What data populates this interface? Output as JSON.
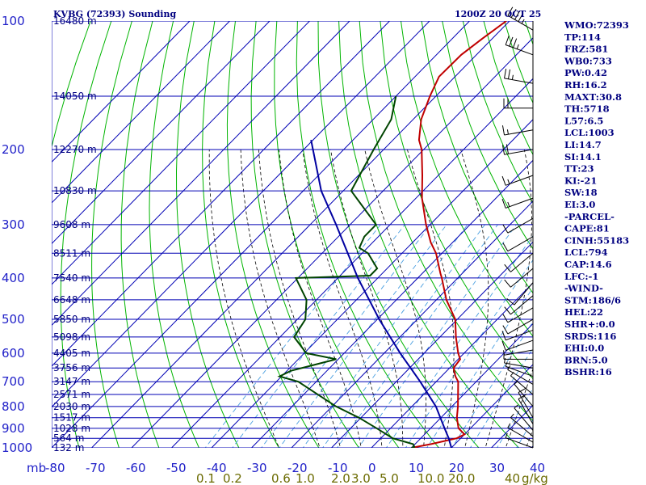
{
  "header": {
    "station_title": "KVBG (72393) Sounding",
    "datetime": "1200Z 20 OCT 25"
  },
  "chart_data": {
    "type": "skew-t",
    "pressure_axis": {
      "unit_label": "mb",
      "levels": [
        100,
        200,
        300,
        400,
        500,
        600,
        700,
        800,
        900,
        1000
      ],
      "log_scale": true
    },
    "temperature_axis": {
      "ticks": [
        -80,
        -70,
        -60,
        -50,
        -40,
        -30,
        -20,
        -10,
        0,
        10,
        20,
        30,
        40
      ],
      "skewed": true
    },
    "mixing_ratio_labels": [
      "0.1",
      "0.2",
      "0.6",
      "1.0",
      "2.0",
      "3.0",
      "5.0",
      "10.0",
      "20.0",
      "40",
      "g/kg"
    ],
    "height_labels": [
      {
        "p": 100,
        "label": "16480 m"
      },
      {
        "p": 150,
        "label": "14050 m"
      },
      {
        "p": 200,
        "label": "12270 m"
      },
      {
        "p": 250,
        "label": "10830 m"
      },
      {
        "p": 300,
        "label": "9608 m"
      },
      {
        "p": 350,
        "label": "8511 m"
      },
      {
        "p": 400,
        "label": "7540 m"
      },
      {
        "p": 450,
        "label": "6648 m"
      },
      {
        "p": 500,
        "label": "5850 m"
      },
      {
        "p": 550,
        "label": "5098 m"
      },
      {
        "p": 600,
        "label": "4405 m"
      },
      {
        "p": 650,
        "label": "3756 m"
      },
      {
        "p": 700,
        "label": "3147 m"
      },
      {
        "p": 750,
        "label": "2571 m"
      },
      {
        "p": 800,
        "label": "2030 m"
      },
      {
        "p": 850,
        "label": "1517 m"
      },
      {
        "p": 900,
        "label": "1028 m"
      },
      {
        "p": 950,
        "label": "564 m"
      },
      {
        "p": 1000,
        "label": "132 m"
      }
    ],
    "series": [
      {
        "name": "temperature",
        "color": "#c00000",
        "points": [
          [
            100,
            -70.8
          ],
          [
            110,
            -72.5
          ],
          [
            120,
            -73.8
          ],
          [
            135,
            -74.0
          ],
          [
            150,
            -71.5
          ],
          [
            170,
            -68.0
          ],
          [
            190,
            -63.5
          ],
          [
            200,
            -60.5
          ],
          [
            230,
            -54.0
          ],
          [
            260,
            -48.5
          ],
          [
            300,
            -41.0
          ],
          [
            330,
            -35.5
          ],
          [
            350,
            -31.5
          ],
          [
            390,
            -25.5
          ],
          [
            400,
            -24.0
          ],
          [
            450,
            -17.5
          ],
          [
            500,
            -10.5
          ],
          [
            550,
            -6.0
          ],
          [
            600,
            -1.5
          ],
          [
            620,
            0.5
          ],
          [
            650,
            1.0
          ],
          [
            680,
            3.5
          ],
          [
            700,
            5.5
          ],
          [
            800,
            11.5
          ],
          [
            850,
            14.0
          ],
          [
            900,
            17.0
          ],
          [
            930,
            20.0
          ],
          [
            950,
            19.0
          ],
          [
            980,
            14.0
          ],
          [
            1000,
            10.0
          ]
        ]
      },
      {
        "name": "dewpoint",
        "color": "#004400",
        "points": [
          [
            150,
            -80.0
          ],
          [
            170,
            -75.5
          ],
          [
            200,
            -72.5
          ],
          [
            250,
            -68.0
          ],
          [
            300,
            -53.5
          ],
          [
            320,
            -53.5
          ],
          [
            340,
            -52.0
          ],
          [
            350,
            -48.5
          ],
          [
            380,
            -42.5
          ],
          [
            395,
            -42.5
          ],
          [
            400,
            -60.5
          ],
          [
            450,
            -52.5
          ],
          [
            500,
            -48.0
          ],
          [
            550,
            -46.5
          ],
          [
            600,
            -39.5
          ],
          [
            620,
            -30.5
          ],
          [
            660,
            -39.0
          ],
          [
            680,
            -40.5
          ],
          [
            700,
            -34.5
          ],
          [
            800,
            -19.0
          ],
          [
            850,
            -10.5
          ],
          [
            900,
            -3.5
          ],
          [
            950,
            3.0
          ],
          [
            980,
            9.5
          ],
          [
            995,
            10.5
          ],
          [
            1000,
            10.0
          ]
        ]
      },
      {
        "name": "parcel",
        "color": "#0000a0",
        "points": [
          [
            190,
            -90.5
          ],
          [
            250,
            -75.5
          ],
          [
            300,
            -63.5
          ],
          [
            400,
            -45.0
          ],
          [
            500,
            -29.5
          ],
          [
            600,
            -16.0
          ],
          [
            700,
            -4.0
          ],
          [
            800,
            6.0
          ],
          [
            900,
            13.5
          ],
          [
            950,
            17.0
          ],
          [
            1000,
            20.0
          ]
        ]
      }
    ],
    "grid": true,
    "legend": "none"
  },
  "indices": [
    "WMO:72393",
    "TP:114",
    "FRZ:581",
    "WB0:733",
    "PW:0.42",
    "RH:16.2",
    "MAXT:30.8",
    "TH:5718",
    "L57:6.5",
    "LCL:1003",
    "LI:14.7",
    "SI:14.1",
    "TT:23",
    "KI:-21",
    "SW:18",
    "EI:3.0",
    "-PARCEL-",
    "CAPE:81",
    "CINH:55183",
    "LCL:794",
    "CAP:14.6",
    "LFC:-1",
    "-WIND-",
    "STM:186/6",
    "HEL:22",
    "SHR+:0.0",
    "SRDS:116",
    "EHI:0.0",
    "BRN:5.0",
    "BSHR:16"
  ],
  "wind_barbs": [
    {
      "p": 105,
      "dir": 300,
      "spd": 45
    },
    {
      "p": 120,
      "dir": 290,
      "spd": 35
    },
    {
      "p": 140,
      "dir": 280,
      "spd": 25
    },
    {
      "p": 160,
      "dir": 270,
      "spd": 20
    },
    {
      "p": 180,
      "dir": 260,
      "spd": 15
    },
    {
      "p": 200,
      "dir": 260,
      "spd": 20
    },
    {
      "p": 230,
      "dir": 250,
      "spd": 15
    },
    {
      "p": 260,
      "dir": 250,
      "spd": 15
    },
    {
      "p": 290,
      "dir": 240,
      "spd": 10
    },
    {
      "p": 320,
      "dir": 240,
      "spd": 10
    },
    {
      "p": 350,
      "dir": 230,
      "spd": 10
    },
    {
      "p": 380,
      "dir": 230,
      "spd": 10
    },
    {
      "p": 410,
      "dir": 220,
      "spd": 10
    },
    {
      "p": 440,
      "dir": 230,
      "spd": 10
    },
    {
      "p": 470,
      "dir": 240,
      "spd": 10
    },
    {
      "p": 500,
      "dir": 240,
      "spd": 10
    },
    {
      "p": 530,
      "dir": 250,
      "spd": 10
    },
    {
      "p": 560,
      "dir": 250,
      "spd": 10
    },
    {
      "p": 590,
      "dir": 260,
      "spd": 5
    },
    {
      "p": 620,
      "dir": 270,
      "spd": 5
    },
    {
      "p": 650,
      "dir": 280,
      "spd": 5
    },
    {
      "p": 680,
      "dir": 290,
      "spd": 5
    },
    {
      "p": 710,
      "dir": 300,
      "spd": 5
    },
    {
      "p": 750,
      "dir": 310,
      "spd": 5
    },
    {
      "p": 800,
      "dir": 320,
      "spd": 5
    },
    {
      "p": 850,
      "dir": 330,
      "spd": 10
    },
    {
      "p": 880,
      "dir": 330,
      "spd": 10
    },
    {
      "p": 910,
      "dir": 320,
      "spd": 5
    },
    {
      "p": 940,
      "dir": 310,
      "spd": 5
    },
    {
      "p": 970,
      "dir": 300,
      "spd": 5
    },
    {
      "p": 1000,
      "dir": 290,
      "spd": 5
    }
  ],
  "colors": {
    "grid_blue": "#0000b4",
    "dry_adiabat": "#00b400",
    "moist_adiabat": "#000000",
    "mixing_ratio": "#4a9fe0",
    "axis_text": "#1e1ec8",
    "index_text": "#000080",
    "mixing_text": "#6b6b00"
  }
}
